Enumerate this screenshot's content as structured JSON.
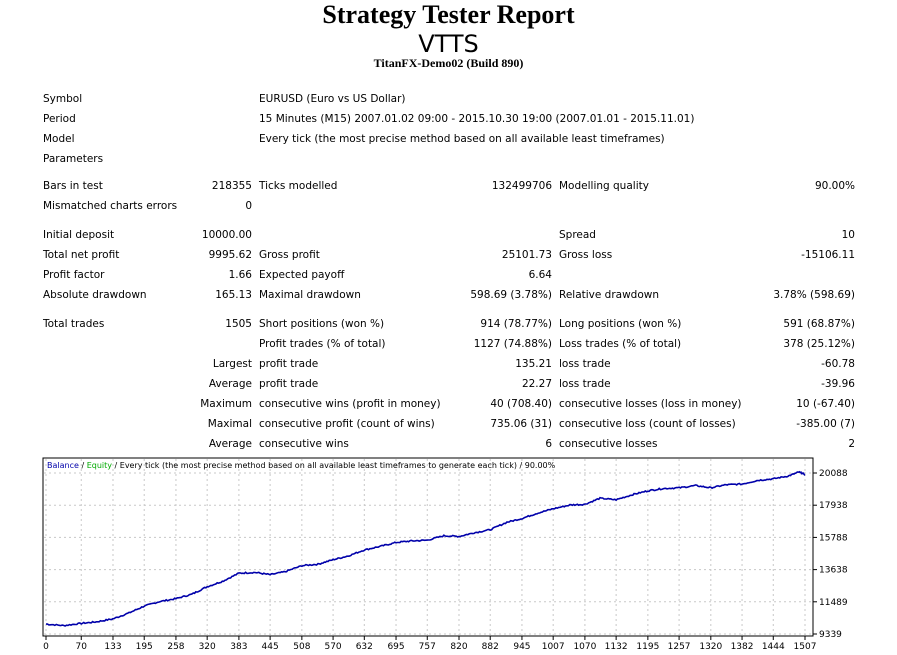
{
  "report": {
    "title": "Strategy Tester Report",
    "expert": "VTTS",
    "account": "TitanFX-Demo02 (Build 890)"
  },
  "info": {
    "symbol_label": "Symbol",
    "symbol_value": "EURUSD (Euro vs US Dollar)",
    "period_label": "Period",
    "period_value": "15 Minutes (M15) 2007.01.02 09:00 - 2015.10.30 19:00 (2007.01.01 - 2015.11.01)",
    "model_label": "Model",
    "model_value": "Every tick (the most precise method based on all available least timeframes)",
    "parameters_label": "Parameters"
  },
  "stats": {
    "bars_label": "Bars in test",
    "bars_value": "218355",
    "ticks_label": "Ticks modelled",
    "ticks_value": "132499706",
    "quality_label": "Modelling quality",
    "quality_value": "90.00%",
    "mismatch_label": "Mismatched charts errors",
    "mismatch_value": "0",
    "deposit_label": "Initial deposit",
    "deposit_value": "10000.00",
    "spread_label": "Spread",
    "spread_value": "10",
    "net_label": "Total net profit",
    "net_value": "9995.62",
    "gross_profit_label": "Gross profit",
    "gross_profit_value": "25101.73",
    "gross_loss_label": "Gross loss",
    "gross_loss_value": "-15106.11",
    "pf_label": "Profit factor",
    "pf_value": "1.66",
    "payoff_label": "Expected payoff",
    "payoff_value": "6.64",
    "abs_dd_label": "Absolute drawdown",
    "abs_dd_value": "165.13",
    "max_dd_label": "Maximal drawdown",
    "max_dd_value": "598.69 (3.78%)",
    "rel_dd_label": "Relative drawdown",
    "rel_dd_value": "3.78% (598.69)",
    "trades_label": "Total trades",
    "trades_value": "1505",
    "short_label": "Short positions (won %)",
    "short_value": "914 (78.77%)",
    "long_label": "Long positions (won %)",
    "long_value": "591 (68.87%)",
    "profit_trades_label": "Profit trades (% of total)",
    "profit_trades_value": "1127 (74.88%)",
    "loss_trades_label": "Loss trades (% of total)",
    "loss_trades_value": "378 (25.12%)",
    "largest_label": "Largest",
    "largest_profit_label": "profit trade",
    "largest_profit_value": "135.21",
    "largest_loss_label": "loss trade",
    "largest_loss_value": "-60.78",
    "average_label": "Average",
    "avg_profit_label": "profit trade",
    "avg_profit_value": "22.27",
    "avg_loss_label": "loss trade",
    "avg_loss_value": "-39.96",
    "maximum_label": "Maximum",
    "max_wins_label": "consecutive wins (profit in money)",
    "max_wins_value": "40 (708.40)",
    "max_losses_label": "consecutive losses (loss in money)",
    "max_losses_value": "10 (-67.40)",
    "maximal_label": "Maximal",
    "maximal_profit_label": "consecutive profit (count of wins)",
    "maximal_profit_value": "735.06 (31)",
    "maximal_loss_label": "consecutive loss (count of losses)",
    "maximal_loss_value": "-385.00 (7)",
    "average2_label": "Average",
    "avg_wins_label": "consecutive wins",
    "avg_wins_value": "6",
    "avg_losses_label": "consecutive losses",
    "avg_losses_value": "2"
  },
  "chart_header": {
    "balance": "Balance",
    "sep1": " / ",
    "equity": "Equity",
    "rest": " / Every tick (the most precise method based on all available least timeframes to generate each tick) / 90.00%"
  },
  "colors": {
    "balance": "#0000aa",
    "equity": "#00aa00",
    "grid": "#c8c8c8"
  },
  "chart_data": {
    "type": "line",
    "title": "",
    "x_ticks": [
      0,
      70,
      133,
      195,
      258,
      320,
      383,
      445,
      508,
      570,
      632,
      695,
      757,
      820,
      882,
      945,
      1007,
      1070,
      1132,
      1195,
      1257,
      1320,
      1382,
      1444,
      1507
    ],
    "y_ticks": [
      9339,
      11489,
      13638,
      15788,
      17938,
      20088
    ],
    "xlim": [
      0,
      1507
    ],
    "ylim": [
      9339,
      20088
    ],
    "grid": true,
    "series": [
      {
        "name": "Balance",
        "x": [
          0,
          35,
          70,
          100,
          133,
          165,
          195,
          225,
          258,
          290,
          320,
          350,
          383,
          415,
          445,
          475,
          508,
          540,
          570,
          600,
          632,
          665,
          695,
          725,
          757,
          790,
          820,
          850,
          882,
          915,
          945,
          975,
          1007,
          1040,
          1070,
          1100,
          1132,
          1165,
          1195,
          1225,
          1257,
          1290,
          1320,
          1350,
          1382,
          1414,
          1444,
          1475,
          1495,
          1507
        ],
        "y": [
          10000,
          9900,
          10050,
          10150,
          10350,
          10750,
          11200,
          11500,
          11700,
          12000,
          12500,
          12850,
          13400,
          13450,
          13300,
          13500,
          13900,
          14000,
          14300,
          14550,
          14950,
          15200,
          15450,
          15550,
          15600,
          15900,
          15850,
          16100,
          16300,
          16800,
          17050,
          17400,
          17700,
          17950,
          18000,
          18400,
          18300,
          18650,
          18900,
          19050,
          19100,
          19250,
          19100,
          19300,
          19350,
          19600,
          19700,
          19900,
          20150,
          19995
        ]
      }
    ]
  }
}
